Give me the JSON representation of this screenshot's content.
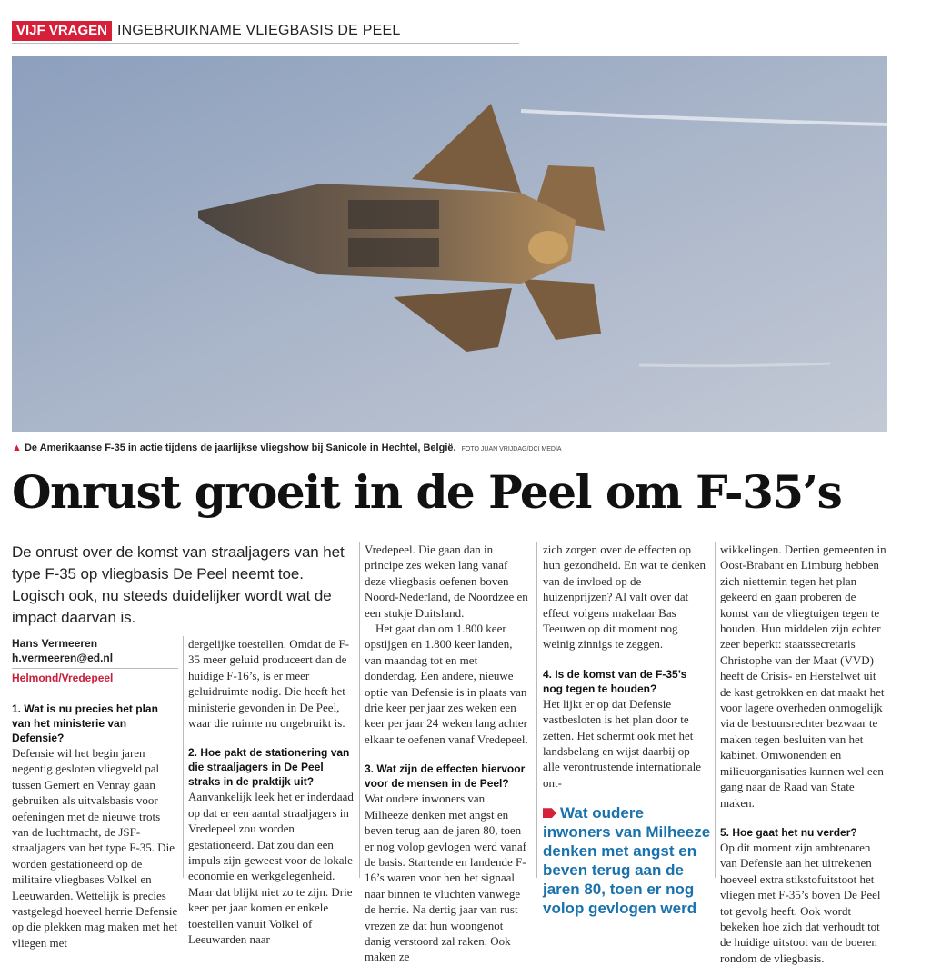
{
  "header": {
    "kicker": "VIJF VRAGEN",
    "title": "INGEBRUIKNAME VLIEGBASIS DE PEEL"
  },
  "photo": {
    "subject": "F-35 fighter jet in flight",
    "caption": "De Amerikaanse F-35 in actie tijdens de jaarlijkse vliegshow bij Sanicole in Hechtel, België.",
    "credit": "FOTO JUAN VRIJDAG/DCI MEDIA"
  },
  "headline": "Onrust groeit in de Peel om F-35’s",
  "lead": "De onrust over de komst van straaljagers van het type F-35 op vliegbasis De Peel neemt toe. Logisch ook, nu steeds duidelijker wordt wat de impact daarvan is.",
  "byline": {
    "author": "Hans Vermeeren",
    "email": "h.vermeeren@ed.nl",
    "location": "Helmond/Vredepeel"
  },
  "pullquote": "Wat oudere inwoners van Milheeze denken met angst en beven terug aan de jaren 80, toen er nog volop gevlogen werd",
  "columns": [
    [
      {
        "type": "q",
        "text": "1. Wat is nu precies het plan van het ministerie van Defensie?"
      },
      {
        "type": "p",
        "text": "Defensie wil het begin jaren negentig gesloten vliegveld pal tussen Gemert en Venray gaan gebruiken als uitvalsbasis voor oefeningen met de nieuwe trots van de luchtmacht, de JSF-straaljagers van het type F-35. Die worden gestationeerd op de militaire vliegbases Volkel en Leeuwarden. Wettelijk is precies vastgelegd hoeveel herrie Defensie op die plekken mag maken met het vliegen met"
      }
    ],
    [
      {
        "type": "p",
        "text": "dergelijke toestellen. Omdat de F-35 meer geluid produceert dan de huidige F-16’s, is er meer geluidruimte nodig. Die heeft het ministerie gevonden in De Peel, waar die ruimte nu ongebruikt is."
      },
      {
        "type": "q",
        "text": "2. Hoe pakt de stationering van die straaljagers in De Peel straks in de praktijk uit?"
      },
      {
        "type": "p",
        "text": "Aanvankelijk leek het er inderdaad op dat er een aantal straaljagers in Vredepeel zou worden gestationeerd. Dat zou dan een impuls zijn geweest voor de lokale economie en werkgelegenheid. Maar dat blijkt niet zo te zijn. Drie keer per jaar komen er enkele toestellen vanuit Volkel of Leeuwarden naar"
      }
    ],
    [
      {
        "type": "p",
        "text": "Vredepeel. Die gaan dan in principe zes weken lang vanaf deze vliegbasis oefenen boven Noord-Nederland, de Noordzee en een stukje Duitsland."
      },
      {
        "type": "pi",
        "text": "Het gaat dan om 1.800 keer opstijgen en 1.800 keer landen, van maandag tot en met donderdag. Een andere, nieuwe optie van Defensie is in plaats van drie keer per jaar zes weken een keer per jaar 24 weken lang achter elkaar te oefenen vanaf Vredepeel."
      },
      {
        "type": "q",
        "text": "3. Wat zijn de effecten hiervoor voor de mensen in de Peel?"
      },
      {
        "type": "p",
        "text": "Wat oudere inwoners van Milheeze denken met angst en beven terug aan de jaren 80, toen er nog volop gevlogen werd vanaf de basis. Startende en landende F-16’s waren voor hen het signaal naar binnen te vluchten vanwege de herrie. Na dertig jaar van rust vrezen ze dat hun woongenot danig verstoord zal raken. Ook maken ze"
      }
    ],
    [
      {
        "type": "p",
        "text": "zich zorgen over de effecten op hun gezondheid. En wat te denken van de invloed op de huizenprijzen? Al valt over dat effect volgens makelaar Bas Teeuwen op dit moment nog weinig zinnigs te zeggen."
      },
      {
        "type": "q",
        "text": "4. Is de komst van de F-35’s nog tegen te houden?"
      },
      {
        "type": "p",
        "text": "Het lijkt er op dat Defensie vastbesloten is het plan door te zetten. Het schermt ook met het landsbelang en wijst daarbij op alle verontrustende internationale ont-"
      }
    ],
    [
      {
        "type": "p",
        "text": "wikkelingen. Dertien gemeenten in Oost-Brabant en Limburg hebben zich niettemin tegen het plan gekeerd en gaan proberen de komst van de vliegtuigen tegen te houden. Hun middelen zijn echter zeer beperkt: staatssecretaris Christophe van der Maat (VVD) heeft de Crisis- en Herstelwet uit de kast getrokken en dat maakt het voor lagere overheden onmogelijk via de bestuursrechter bezwaar te maken tegen besluiten van het kabinet. Omwonenden en milieuorganisaties kunnen wel een gang naar de Raad van State maken."
      },
      {
        "type": "q",
        "text": "5. Hoe gaat het nu verder?"
      },
      {
        "type": "p",
        "text": "Op dit moment zijn ambtenaren van Defensie aan het uitrekenen hoeveel extra stikstofuitstoot het vliegen met F-35’s boven De Peel tot gevolg heeft. Ook wordt bekeken hoe zich dat verhoudt tot de huidige uitstoot van de boeren rondom de vliegbasis."
      }
    ]
  ],
  "colors": {
    "accent_red": "#d6203a",
    "pullquote_blue": "#1a72ad"
  }
}
